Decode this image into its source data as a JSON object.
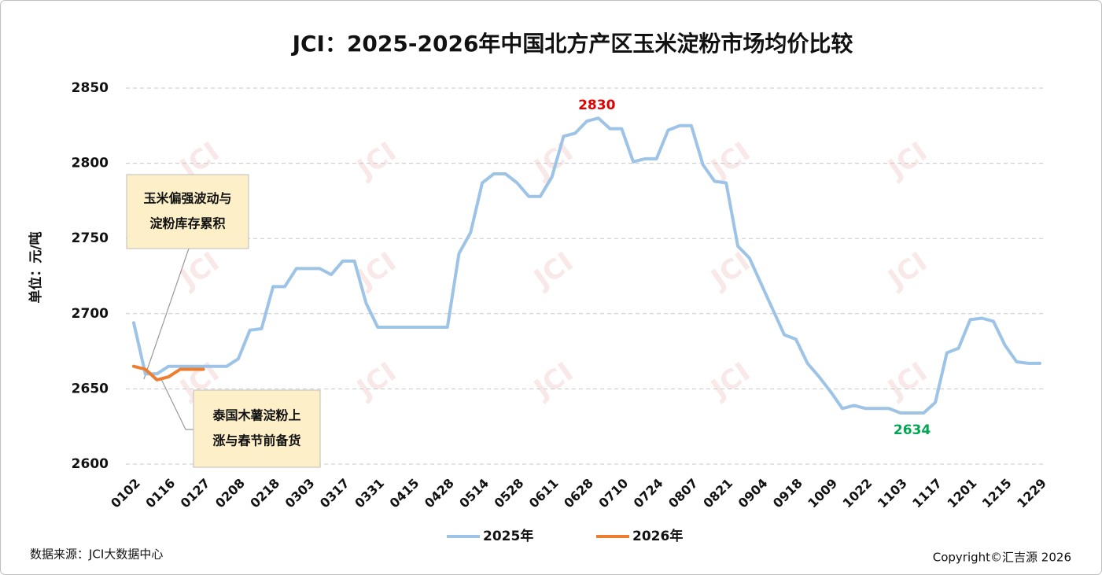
{
  "chart_data": {
    "type": "line",
    "title": "JCI：2025-2026年中国北方产区玉米淀粉市场均价比较",
    "y_label": "单位：元/吨",
    "source": "数据来源：JCI大数据中心",
    "copyright": "Copyright©汇吉源 2026",
    "watermark": "JCI",
    "ylim": [
      2600,
      2850
    ],
    "yticks": [
      2600,
      2650,
      2700,
      2750,
      2800,
      2850
    ],
    "grid": true,
    "categories": [
      "0102",
      null,
      null,
      "0116",
      null,
      null,
      "0127",
      null,
      null,
      "0208",
      null,
      null,
      "0218",
      null,
      null,
      "0303",
      null,
      null,
      "0317",
      null,
      null,
      "0331",
      null,
      null,
      "0415",
      null,
      null,
      "0428",
      null,
      null,
      "0514",
      null,
      null,
      "0528",
      null,
      null,
      "0611",
      null,
      null,
      "0628",
      null,
      null,
      "0710",
      null,
      null,
      "0724",
      null,
      null,
      "0807",
      null,
      null,
      "0821",
      null,
      null,
      "0904",
      null,
      null,
      "0918",
      null,
      null,
      "1009",
      null,
      null,
      "1022",
      null,
      null,
      "1103",
      null,
      null,
      "1117",
      null,
      null,
      "1201",
      null,
      null,
      "1215",
      null,
      null,
      "1229"
    ],
    "series": [
      {
        "name": "2025年",
        "color": "#9dc3e6",
        "values": [
          2694,
          2660,
          2660,
          2665,
          2665,
          2665,
          2665,
          2665,
          2665,
          2670,
          2689,
          2690,
          2718,
          2718,
          2730,
          2730,
          2730,
          2726,
          2735,
          2735,
          2707,
          2691,
          2691,
          2691,
          2691,
          2691,
          2691,
          2691,
          2740,
          2754,
          2787,
          2793,
          2793,
          2787,
          2778,
          2778,
          2791,
          2818,
          2820,
          2828,
          2830,
          2823,
          2823,
          2801,
          2803,
          2803,
          2822,
          2825,
          2825,
          2799,
          2788,
          2787,
          2745,
          2737,
          2720,
          2703,
          2686,
          2683,
          2667,
          2658,
          2648,
          2637,
          2639,
          2637,
          2637,
          2637,
          2634,
          2634,
          2634,
          2641,
          2674,
          2677,
          2696,
          2697,
          2695,
          2679,
          2668,
          2667,
          2667
        ]
      },
      {
        "name": "2026年",
        "color": "#ed7d31",
        "values": [
          2665,
          2663,
          2656,
          2658,
          2663,
          2663,
          2663,
          null,
          null,
          null,
          null,
          null,
          null,
          null,
          null,
          null,
          null,
          null,
          null,
          null,
          null,
          null,
          null,
          null,
          null,
          null,
          null,
          null,
          null,
          null,
          null,
          null,
          null,
          null,
          null,
          null,
          null,
          null,
          null,
          null,
          null,
          null,
          null,
          null,
          null,
          null,
          null,
          null,
          null,
          null,
          null,
          null,
          null,
          null,
          null,
          null,
          null,
          null,
          null,
          null,
          null,
          null,
          null,
          null,
          null,
          null,
          null,
          null,
          null,
          null,
          null,
          null,
          null,
          null,
          null,
          null,
          null,
          null,
          null
        ]
      }
    ],
    "annotations": [
      {
        "lines": [
          "玉米偏强波动与",
          "淀粉库存累积"
        ]
      },
      {
        "lines": [
          "泰国木薯淀粉上",
          "涨与春节前备货"
        ]
      }
    ]
  }
}
